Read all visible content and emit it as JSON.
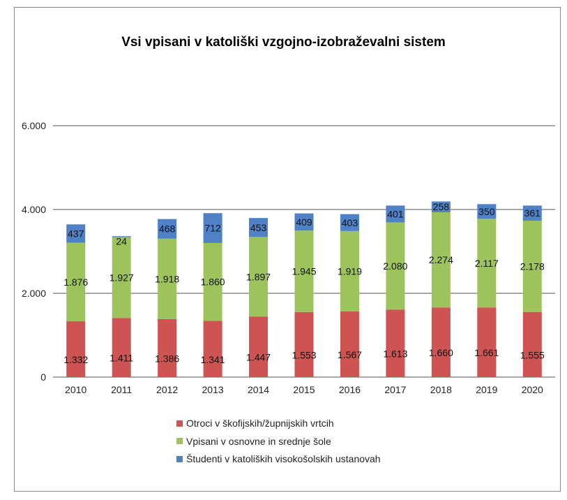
{
  "chart_data": {
    "type": "bar",
    "stacked": true,
    "title": "Vsi vpisani v katoliški vzgojno-izobraževalni sistem",
    "categories": [
      "2010",
      "2011",
      "2012",
      "2013",
      "2014",
      "2015",
      "2016",
      "2017",
      "2018",
      "2019",
      "2020"
    ],
    "series": [
      {
        "name": "Otroci v škofijskih/župnijskih vrtcih",
        "color": "#cd5452",
        "values": [
          1332,
          1411,
          1386,
          1341,
          1447,
          1553,
          1567,
          1613,
          1660,
          1661,
          1555
        ],
        "labels": [
          "1.332",
          "1.411",
          "1.386",
          "1.341",
          "1.447",
          "1.553",
          "1.567",
          "1.613",
          "1.660",
          "1.661",
          "1.555"
        ]
      },
      {
        "name": "Vpisani v osnovne in srednje šole",
        "color": "#9dc35d",
        "values": [
          1876,
          1927,
          1918,
          1860,
          1897,
          1945,
          1919,
          2080,
          2274,
          2117,
          2178
        ],
        "labels": [
          "1.876",
          "1.927",
          "1.918",
          "1.860",
          "1.897",
          "1.945",
          "1.919",
          "2.080",
          "2.274",
          "2.117",
          "2.178"
        ]
      },
      {
        "name": "Študenti v katoliških visokošolskih ustanovah",
        "color": "#4f81c7",
        "values": [
          437,
          24,
          468,
          712,
          453,
          409,
          403,
          401,
          258,
          350,
          361
        ],
        "labels": [
          "437",
          "24",
          "468",
          "712",
          "453",
          "409",
          "403",
          "401",
          "258",
          "350",
          "361"
        ]
      }
    ],
    "yticks": [
      0,
      2000,
      4000,
      6000
    ],
    "ytick_labels": [
      "0",
      "2.000",
      "4.000",
      "6.000"
    ],
    "ylim": [
      0,
      6000
    ],
    "grid": true,
    "legend_position": "bottom"
  }
}
